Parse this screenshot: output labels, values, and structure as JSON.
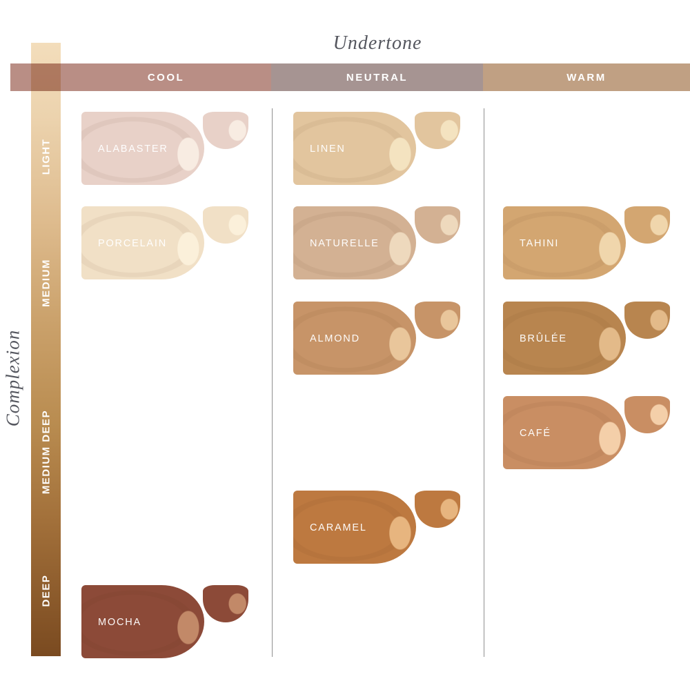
{
  "title": "Undertone",
  "y_axis_title": "Complexion",
  "colors": {
    "background": "#ffffff",
    "axis_text": "#55575f",
    "divider": "#8f8f8f",
    "header_text": "#ffffff",
    "bar_gradient_top": "#f3ddbb",
    "bar_gradient_bottom": "#7a4a20"
  },
  "undertone_columns": [
    {
      "id": "cool",
      "label": "COOL",
      "color": "#b98e85"
    },
    {
      "id": "neutral",
      "label": "NEUTRAL",
      "color": "#a69492"
    },
    {
      "id": "warm",
      "label": "WARM",
      "color": "#c0a083"
    }
  ],
  "complexion_levels": [
    {
      "label": "LIGHT"
    },
    {
      "label": "MEDIUM"
    },
    {
      "label": "MEDIUM DEEP"
    },
    {
      "label": "DEEP"
    }
  ],
  "swatches": [
    {
      "name": "ALABASTER",
      "undertone": "COOL",
      "complexion": "LIGHT",
      "column": "cool",
      "row": 0,
      "color": "#e8d1c8",
      "highlight": "#f8ece2"
    },
    {
      "name": "LINEN",
      "undertone": "NEUTRAL",
      "complexion": "LIGHT",
      "column": "neutral",
      "row": 0,
      "color": "#e2c59e",
      "highlight": "#f4e3c0"
    },
    {
      "name": "PORCELAIN",
      "undertone": "COOL",
      "complexion": "MEDIUM",
      "column": "cool",
      "row": 1,
      "color": "#f1e0c6",
      "highlight": "#fbf0da"
    },
    {
      "name": "NATURELLE",
      "undertone": "NEUTRAL",
      "complexion": "MEDIUM",
      "column": "neutral",
      "row": 1,
      "color": "#d3b193",
      "highlight": "#eed9bd"
    },
    {
      "name": "TAHINI",
      "undertone": "WARM",
      "complexion": "MEDIUM",
      "column": "warm",
      "row": 1,
      "color": "#d3a671",
      "highlight": "#f0d6ac"
    },
    {
      "name": "ALMOND",
      "undertone": "NEUTRAL",
      "complexion": "MEDIUM",
      "column": "neutral",
      "row": 2,
      "color": "#c79468",
      "highlight": "#e9c69b"
    },
    {
      "name": "BRÛLÉE",
      "undertone": "WARM",
      "complexion": "MEDIUM",
      "column": "warm",
      "row": 2,
      "color": "#b8854f",
      "highlight": "#e3ba89"
    },
    {
      "name": "CAFÉ",
      "undertone": "WARM",
      "complexion": "MEDIUM DEEP",
      "column": "warm",
      "row": 3,
      "color": "#c98e63",
      "highlight": "#f4cfa9"
    },
    {
      "name": "CARAMEL",
      "undertone": "NEUTRAL",
      "complexion": "MEDIUM DEEP",
      "column": "neutral",
      "row": 4,
      "color": "#bd7940",
      "highlight": "#e7b57f"
    },
    {
      "name": "MOCHA",
      "undertone": "COOL",
      "complexion": "DEEP",
      "column": "cool",
      "row": 5,
      "color": "#8c4a38",
      "highlight": "#c28968"
    }
  ],
  "chart_data": {
    "type": "heatmap",
    "title": "Undertone",
    "x_axis": {
      "label": "Undertone",
      "categories": [
        "COOL",
        "NEUTRAL",
        "WARM"
      ]
    },
    "y_axis": {
      "label": "Complexion",
      "categories": [
        "LIGHT",
        "MEDIUM",
        "MEDIUM DEEP",
        "DEEP"
      ]
    },
    "legend_position": "none",
    "grid": false,
    "cells": [
      {
        "shade": "ALABASTER",
        "undertone": "COOL",
        "complexion": "LIGHT",
        "color": "#e8d1c8"
      },
      {
        "shade": "LINEN",
        "undertone": "NEUTRAL",
        "complexion": "LIGHT",
        "color": "#e2c59e"
      },
      {
        "shade": "PORCELAIN",
        "undertone": "COOL",
        "complexion": "MEDIUM",
        "color": "#f1e0c6"
      },
      {
        "shade": "NATURELLE",
        "undertone": "NEUTRAL",
        "complexion": "MEDIUM",
        "color": "#d3b193"
      },
      {
        "shade": "TAHINI",
        "undertone": "WARM",
        "complexion": "MEDIUM",
        "color": "#d3a671"
      },
      {
        "shade": "ALMOND",
        "undertone": "NEUTRAL",
        "complexion": "MEDIUM",
        "color": "#c79468"
      },
      {
        "shade": "BRÛLÉE",
        "undertone": "WARM",
        "complexion": "MEDIUM",
        "color": "#b8854f"
      },
      {
        "shade": "CAFÉ",
        "undertone": "WARM",
        "complexion": "MEDIUM DEEP",
        "color": "#c98e63"
      },
      {
        "shade": "CARAMEL",
        "undertone": "NEUTRAL",
        "complexion": "MEDIUM DEEP",
        "color": "#bd7940"
      },
      {
        "shade": "MOCHA",
        "undertone": "COOL",
        "complexion": "DEEP",
        "color": "#8c4a38"
      }
    ]
  }
}
